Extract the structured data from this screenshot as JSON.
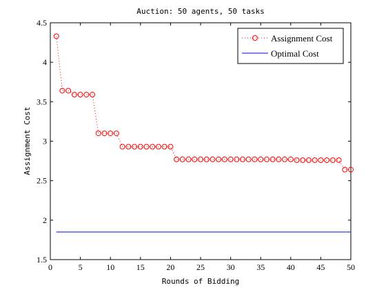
{
  "chart_data": {
    "type": "line",
    "title": "Auction: 50 agents, 50 tasks",
    "xlabel": "Rounds of Bidding",
    "ylabel": "Assignment Cost",
    "xlim": [
      0,
      50
    ],
    "ylim": [
      1.5,
      4.5
    ],
    "xticks": [
      0,
      5,
      10,
      15,
      20,
      25,
      30,
      35,
      40,
      45,
      50
    ],
    "yticks": [
      1.5,
      2,
      2.5,
      3,
      3.5,
      4,
      4.5
    ],
    "xtick_labels": [
      "0",
      "5",
      "10",
      "15",
      "20",
      "25",
      "30",
      "35",
      "40",
      "45",
      "50"
    ],
    "ytick_labels": [
      "1.5",
      "2",
      "2.5",
      "3",
      "3.5",
      "4",
      "4.5"
    ],
    "grid": false,
    "legend_position": "top-right",
    "x": [
      1,
      2,
      3,
      4,
      5,
      6,
      7,
      8,
      9,
      10,
      11,
      12,
      13,
      14,
      15,
      16,
      17,
      18,
      19,
      20,
      21,
      22,
      23,
      24,
      25,
      26,
      27,
      28,
      29,
      30,
      31,
      32,
      33,
      34,
      35,
      36,
      37,
      38,
      39,
      40,
      41,
      42,
      43,
      44,
      45,
      46,
      47,
      48,
      49,
      50
    ],
    "series": [
      {
        "name": "Assignment Cost",
        "color": "#ff0000",
        "line_style": "dotted",
        "marker": "circle",
        "values": [
          4.33,
          3.64,
          3.64,
          3.59,
          3.59,
          3.59,
          3.59,
          3.1,
          3.1,
          3.1,
          3.1,
          2.93,
          2.93,
          2.93,
          2.93,
          2.93,
          2.93,
          2.93,
          2.93,
          2.93,
          2.77,
          2.77,
          2.77,
          2.77,
          2.77,
          2.77,
          2.77,
          2.77,
          2.77,
          2.77,
          2.77,
          2.77,
          2.77,
          2.77,
          2.77,
          2.77,
          2.77,
          2.77,
          2.77,
          2.77,
          2.76,
          2.76,
          2.76,
          2.76,
          2.76,
          2.76,
          2.76,
          2.76,
          2.64,
          2.64
        ]
      },
      {
        "name": "Optimal Cost",
        "color": "#0000ff",
        "line_style": "solid",
        "marker": "none",
        "x": [
          1,
          50
        ],
        "values": [
          1.85,
          1.85
        ]
      }
    ]
  }
}
